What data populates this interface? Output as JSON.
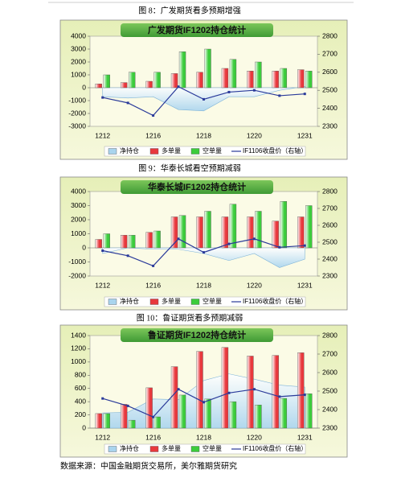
{
  "chart_data": [
    {
      "type": "bar",
      "caption": "图 8：广发期货看多预期增强",
      "title": "广发期货IF1202持仓统计",
      "categories": [
        "1212",
        null,
        "1216",
        null,
        "1218",
        null,
        "1220",
        null,
        "1231"
      ],
      "ylim": [
        -3000,
        4000
      ],
      "yticks": [
        -3000,
        -2000,
        -1000,
        0,
        1000,
        2000,
        3000,
        4000
      ],
      "y2lim": [
        2300,
        2800
      ],
      "y2ticks": [
        2300,
        2400,
        2500,
        2600,
        2700,
        2800
      ],
      "series": [
        {
          "name": "净持仓",
          "type": "area",
          "color": "#a9d4ee",
          "values": [
            -700,
            -800,
            -700,
            -1700,
            -1800,
            -700,
            -700,
            -200,
            100
          ]
        },
        {
          "name": "多单量",
          "type": "bar",
          "color": "#e8383d",
          "values": [
            300,
            400,
            500,
            1100,
            1200,
            1500,
            1300,
            1300,
            1400
          ]
        },
        {
          "name": "空单量",
          "type": "bar",
          "color": "#3ccc3c",
          "values": [
            1000,
            1200,
            1200,
            2800,
            3000,
            2200,
            2000,
            1500,
            1300
          ]
        },
        {
          "name": "IF1106收盘价（右轴）",
          "type": "line",
          "axis": "y2",
          "color": "#2a3a9a",
          "values": [
            2460,
            2430,
            2360,
            2520,
            2450,
            2490,
            2500,
            2470,
            2480
          ]
        }
      ]
    },
    {
      "type": "bar",
      "caption": "图 9：华泰长城看空预期减弱",
      "title": "华泰长城IF1202持仓统计",
      "categories": [
        "1212",
        null,
        "1216",
        null,
        "1218",
        null,
        "1220",
        null,
        "1231"
      ],
      "ylim": [
        -2000,
        4000
      ],
      "yticks": [
        -2000,
        -1000,
        0,
        1000,
        2000,
        3000,
        4000
      ],
      "y2lim": [
        2300,
        2800
      ],
      "y2ticks": [
        2300,
        2400,
        2500,
        2600,
        2700,
        2800
      ],
      "series": [
        {
          "name": "净持仓",
          "type": "area",
          "color": "#a9d4ee",
          "values": [
            -400,
            0,
            -100,
            -100,
            -400,
            -900,
            -400,
            -1400,
            -800
          ]
        },
        {
          "name": "多单量",
          "type": "bar",
          "color": "#e8383d",
          "values": [
            600,
            900,
            1100,
            2200,
            2200,
            2200,
            2200,
            1900,
            2200
          ]
        },
        {
          "name": "空单量",
          "type": "bar",
          "color": "#3ccc3c",
          "values": [
            1000,
            900,
            1200,
            2300,
            2600,
            3100,
            2600,
            3300,
            3000
          ]
        },
        {
          "name": "IF1106收盘价（右轴）",
          "type": "line",
          "axis": "y2",
          "color": "#2a3a9a",
          "values": [
            2450,
            2420,
            2360,
            2520,
            2440,
            2490,
            2520,
            2470,
            2480
          ]
        }
      ]
    },
    {
      "type": "bar",
      "caption": "图 10：鲁证期货看多预期减弱",
      "title": "鲁证期货IF1202持仓统计",
      "categories": [
        "1212",
        null,
        "1216",
        null,
        "1218",
        null,
        "1220",
        null,
        "1231"
      ],
      "ylim": [
        0,
        1400
      ],
      "yticks": [
        0,
        200,
        400,
        600,
        800,
        1000,
        1200,
        1400
      ],
      "y2lim": [
        2300,
        2800
      ],
      "y2ticks": [
        2300,
        2400,
        2500,
        2600,
        2700,
        2800
      ],
      "series": [
        {
          "name": "净持仓",
          "type": "area",
          "color": "#a9d4ee",
          "values": [
            230,
            240,
            440,
            430,
            720,
            820,
            740,
            650,
            620
          ]
        },
        {
          "name": "多单量",
          "type": "bar",
          "color": "#e8383d",
          "values": [
            220,
            360,
            610,
            930,
            1160,
            1220,
            1090,
            1100,
            1140
          ]
        },
        {
          "name": "空单量",
          "type": "bar",
          "color": "#3ccc3c",
          "values": [
            220,
            120,
            170,
            500,
            440,
            400,
            350,
            450,
            520
          ]
        },
        {
          "name": "IF1106收盘价（右轴）",
          "type": "line",
          "axis": "y2",
          "color": "#2a3a9a",
          "values": [
            2460,
            2420,
            2360,
            2510,
            2440,
            2490,
            2510,
            2470,
            2480
          ]
        }
      ]
    }
  ],
  "source": "数据来源：中国金融期货交易所，美尔雅期货研究"
}
